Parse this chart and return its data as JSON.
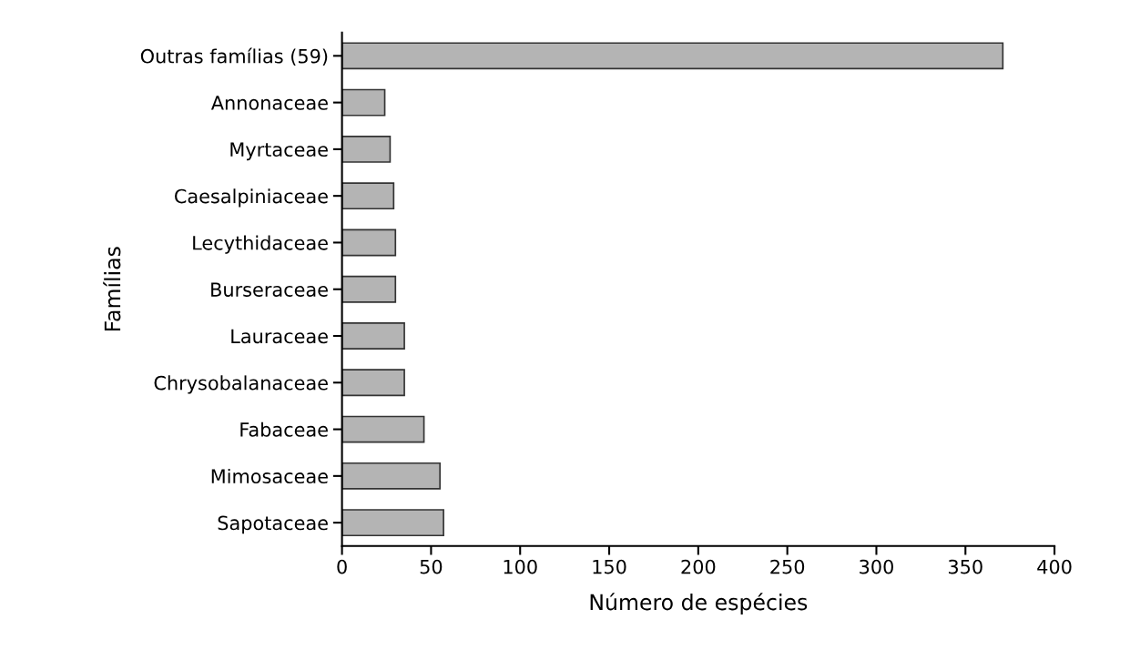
{
  "chart_data": {
    "type": "bar",
    "orientation": "horizontal",
    "xlabel": "Número de espécies",
    "ylabel": "Famílias",
    "categories": [
      "Outras famílias (59)",
      "Annonaceae",
      "Myrtaceae",
      "Caesalpiniaceae",
      "Lecythidaceae",
      "Burseraceae",
      "Lauraceae",
      "Chrysobalanaceae",
      "Fabaceae",
      "Mimosaceae",
      "Sapotaceae"
    ],
    "values": [
      371,
      24,
      27,
      29,
      30,
      30,
      35,
      35,
      46,
      55,
      57
    ],
    "color": "#b4b4b4",
    "xlim": [
      0,
      400
    ],
    "xticks": [
      0,
      50,
      100,
      150,
      200,
      250,
      300,
      350,
      400
    ],
    "grid": false,
    "legend": false
  }
}
